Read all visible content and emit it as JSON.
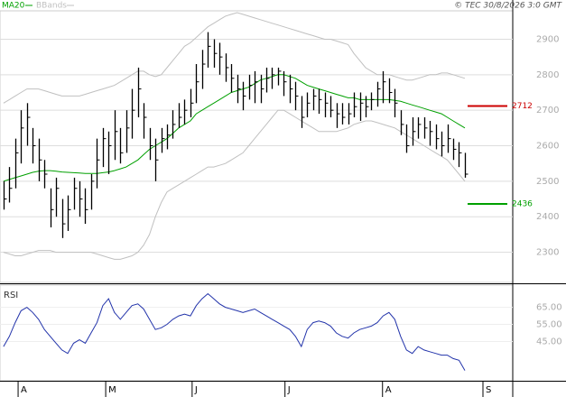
{
  "chart_data": {
    "type": "ohlc",
    "credit": "© TEC 30/8/2026 3:0 GMT",
    "xlim": [
      -0.6,
      87.2
    ],
    "xticks": [
      {
        "value": 2.5,
        "label": "A"
      },
      {
        "value": 17.5,
        "label": "M"
      },
      {
        "value": 32.3,
        "label": "J"
      },
      {
        "value": 48.2,
        "label": "J"
      },
      {
        "value": 64.9,
        "label": "A"
      },
      {
        "value": 82.1,
        "label": "S"
      }
    ],
    "ylim": [
      2215,
      2980
    ],
    "yticks": [
      2300,
      2400,
      2500,
      2600,
      2700,
      2800,
      2900
    ],
    "grid": true,
    "bars": {
      "color": "#000000",
      "high": [
        2500,
        2540,
        2620,
        2700,
        2720,
        2650,
        2620,
        2560,
        2480,
        2510,
        2450,
        2460,
        2510,
        2500,
        2480,
        2520,
        2620,
        2650,
        2640,
        2700,
        2650,
        2700,
        2760,
        2820,
        2720,
        2650,
        2620,
        2650,
        2660,
        2700,
        2720,
        2730,
        2760,
        2830,
        2870,
        2920,
        2900,
        2890,
        2860,
        2830,
        2800,
        2780,
        2800,
        2810,
        2800,
        2820,
        2820,
        2820,
        2810,
        2800,
        2780,
        2740,
        2750,
        2760,
        2760,
        2750,
        2740,
        2720,
        2720,
        2720,
        2750,
        2750,
        2740,
        2750,
        2780,
        2810,
        2790,
        2760,
        2700,
        2660,
        2680,
        2680,
        2680,
        2670,
        2660,
        2640,
        2660,
        2620,
        2610,
        2580
      ],
      "low": [
        2420,
        2440,
        2480,
        2550,
        2600,
        2550,
        2500,
        2480,
        2370,
        2400,
        2340,
        2360,
        2420,
        2400,
        2380,
        2420,
        2480,
        2540,
        2520,
        2560,
        2550,
        2580,
        2620,
        2680,
        2620,
        2560,
        2500,
        2580,
        2590,
        2620,
        2650,
        2660,
        2680,
        2720,
        2760,
        2820,
        2820,
        2800,
        2780,
        2750,
        2720,
        2700,
        2730,
        2720,
        2720,
        2750,
        2760,
        2770,
        2740,
        2720,
        2700,
        2650,
        2680,
        2700,
        2690,
        2680,
        2680,
        2650,
        2660,
        2660,
        2680,
        2670,
        2680,
        2700,
        2710,
        2720,
        2720,
        2680,
        2630,
        2580,
        2600,
        2620,
        2620,
        2600,
        2590,
        2570,
        2580,
        2560,
        2540,
        2510
      ],
      "close": [
        2450,
        2480,
        2580,
        2650,
        2680,
        2600,
        2560,
        2520,
        2420,
        2480,
        2380,
        2420,
        2480,
        2450,
        2420,
        2500,
        2560,
        2620,
        2600,
        2640,
        2580,
        2650,
        2700,
        2760,
        2680,
        2600,
        2560,
        2620,
        2630,
        2660,
        2680,
        2700,
        2720,
        2780,
        2830,
        2880,
        2860,
        2850,
        2820,
        2790,
        2760,
        2740,
        2770,
        2780,
        2760,
        2790,
        2800,
        2810,
        2780,
        2760,
        2740,
        2680,
        2720,
        2740,
        2730,
        2720,
        2700,
        2690,
        2680,
        2690,
        2710,
        2720,
        2710,
        2730,
        2760,
        2780,
        2750,
        2720,
        2660,
        2600,
        2640,
        2660,
        2650,
        2640,
        2620,
        2600,
        2620,
        2590,
        2580,
        2520
      ]
    },
    "series": [
      {
        "name": "MA20",
        "color": "#00a000",
        "values": [
          2500,
          2505,
          2510,
          2515,
          2520,
          2525,
          2528,
          2530,
          2530,
          2528,
          2526,
          2525,
          2524,
          2523,
          2522,
          2522,
          2522,
          2524,
          2526,
          2530,
          2535,
          2540,
          2550,
          2560,
          2575,
          2590,
          2600,
          2610,
          2620,
          2635,
          2650,
          2660,
          2670,
          2690,
          2700,
          2710,
          2720,
          2730,
          2740,
          2750,
          2755,
          2760,
          2765,
          2775,
          2785,
          2790,
          2795,
          2800,
          2800,
          2795,
          2790,
          2780,
          2770,
          2765,
          2760,
          2755,
          2750,
          2745,
          2740,
          2735,
          2735,
          2730,
          2730,
          2730,
          2730,
          2730,
          2730,
          2728,
          2725,
          2720,
          2715,
          2710,
          2705,
          2700,
          2695,
          2690,
          2680,
          2670,
          2660,
          2650
        ]
      },
      {
        "name": "BBands",
        "color": "#c0c0c0",
        "upper": [
          2720,
          2730,
          2740,
          2750,
          2760,
          2760,
          2760,
          2755,
          2750,
          2745,
          2740,
          2740,
          2740,
          2740,
          2745,
          2750,
          2755,
          2760,
          2765,
          2770,
          2780,
          2790,
          2800,
          2810,
          2810,
          2800,
          2795,
          2800,
          2820,
          2840,
          2860,
          2880,
          2890,
          2905,
          2920,
          2935,
          2945,
          2955,
          2965,
          2970,
          2975,
          2970,
          2965,
          2960,
          2955,
          2950,
          2945,
          2940,
          2935,
          2930,
          2925,
          2920,
          2915,
          2910,
          2905,
          2900,
          2900,
          2895,
          2890,
          2885,
          2860,
          2840,
          2820,
          2810,
          2800,
          2800,
          2800,
          2795,
          2790,
          2785,
          2785,
          2790,
          2795,
          2800,
          2800,
          2805,
          2805,
          2800,
          2795,
          2790
        ],
        "lower": [
          2300,
          2295,
          2290,
          2290,
          2295,
          2300,
          2305,
          2305,
          2305,
          2300,
          2300,
          2300,
          2300,
          2300,
          2300,
          2300,
          2295,
          2290,
          2285,
          2280,
          2280,
          2285,
          2290,
          2300,
          2320,
          2350,
          2400,
          2440,
          2470,
          2480,
          2490,
          2500,
          2510,
          2520,
          2530,
          2540,
          2540,
          2545,
          2550,
          2560,
          2570,
          2580,
          2600,
          2620,
          2640,
          2660,
          2680,
          2700,
          2700,
          2690,
          2680,
          2670,
          2660,
          2650,
          2640,
          2640,
          2640,
          2640,
          2645,
          2650,
          2660,
          2665,
          2670,
          2670,
          2665,
          2660,
          2655,
          2650,
          2640,
          2630,
          2620,
          2610,
          2600,
          2590,
          2580,
          2570,
          2560,
          2540,
          2520,
          2500
        ]
      }
    ],
    "levels": [
      {
        "value": 2712,
        "color": "#cc0000"
      },
      {
        "value": 2436,
        "color": "#00a000"
      }
    ],
    "rsi": {
      "title": "RSI",
      "color": "#2233aa",
      "ylim": [
        22,
        78
      ],
      "yticks": [
        {
          "value": 45,
          "label": "45.00"
        },
        {
          "value": 55,
          "label": "55.00"
        },
        {
          "value": 65,
          "label": "65.00"
        }
      ],
      "values": [
        42,
        48,
        56,
        63,
        65,
        62,
        58,
        52,
        48,
        44,
        40,
        38,
        44,
        46,
        44,
        50,
        56,
        66,
        70,
        62,
        58,
        62,
        66,
        67,
        64,
        58,
        52,
        53,
        55,
        58,
        60,
        61,
        60,
        66,
        70,
        73,
        70,
        67,
        65,
        64,
        63,
        62,
        63,
        64,
        62,
        60,
        58,
        56,
        54,
        52,
        48,
        42,
        52,
        56,
        57,
        56,
        54,
        50,
        48,
        47,
        50,
        52,
        53,
        54,
        56,
        60,
        62,
        58,
        48,
        40,
        38,
        42,
        40,
        39,
        38,
        37,
        37,
        35,
        34,
        28
      ]
    }
  }
}
